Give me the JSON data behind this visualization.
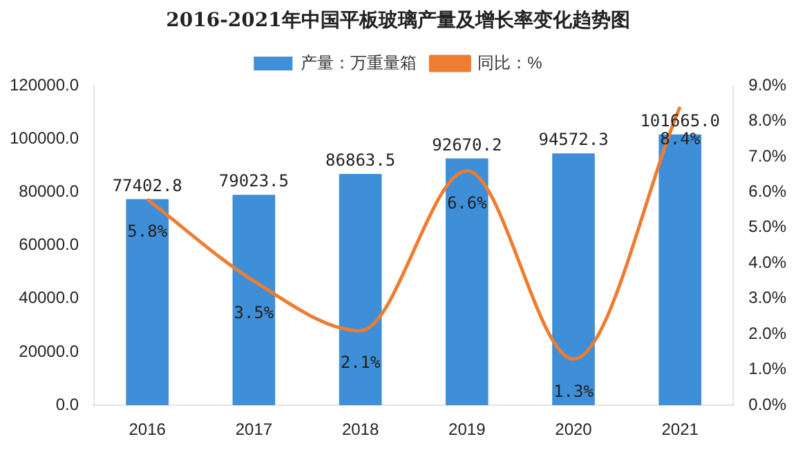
{
  "chart_data": {
    "type": "bar",
    "title": "2016-2021年中国平板玻璃产量及增长率变化趋势图",
    "categories": [
      "2016",
      "2017",
      "2018",
      "2019",
      "2020",
      "2021"
    ],
    "series": [
      {
        "name": "产量：万重量箱",
        "color": "#3e8ed8",
        "values": [
          77402.8,
          79023.5,
          86863.5,
          92670.2,
          94572.3,
          101665.0
        ],
        "value_labels": [
          "77402.8",
          "79023.5",
          "86863.5",
          "92670.2",
          "94572.3",
          "101665.0"
        ]
      },
      {
        "name": "同比：%",
        "type": "line",
        "axis": "y2",
        "color": "#ed7d31",
        "values": [
          5.8,
          3.5,
          2.1,
          6.6,
          1.3,
          8.4
        ],
        "value_labels": [
          "5.8%",
          "3.5%",
          "2.1%",
          "6.6%",
          "1.3%",
          "8.4%"
        ]
      }
    ],
    "ylim": [
      0,
      120000
    ],
    "yticks": [
      {
        "value": 0,
        "label": "0.0"
      },
      {
        "value": 20000,
        "label": "20000.0"
      },
      {
        "value": 40000,
        "label": "40000.0"
      },
      {
        "value": 60000,
        "label": "60000.0"
      },
      {
        "value": 80000,
        "label": "80000.0"
      },
      {
        "value": 100000,
        "label": "100000.0"
      },
      {
        "value": 120000,
        "label": "120000.0"
      }
    ],
    "y2lim": [
      0,
      9
    ],
    "y2ticks": [
      {
        "value": 0,
        "label": "0.0%"
      },
      {
        "value": 1,
        "label": "1.0%"
      },
      {
        "value": 2,
        "label": "2.0%"
      },
      {
        "value": 3,
        "label": "3.0%"
      },
      {
        "value": 4,
        "label": "4.0%"
      },
      {
        "value": 5,
        "label": "5.0%"
      },
      {
        "value": 6,
        "label": "6.0%"
      },
      {
        "value": 7,
        "label": "7.0%"
      },
      {
        "value": 8,
        "label": "8.0%"
      },
      {
        "value": 9,
        "label": "9.0%"
      }
    ],
    "legend": "top",
    "grid": false,
    "marker": "none",
    "line_style": "solid"
  }
}
